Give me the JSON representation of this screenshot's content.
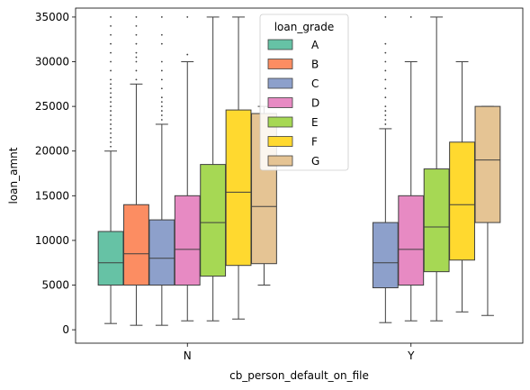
{
  "chart_data": {
    "type": "box",
    "xlabel": "cb_person_default_on_file",
    "ylabel": "loan_amnt",
    "categories": [
      "N",
      "Y"
    ],
    "ylim": [
      -1500,
      36000
    ],
    "yticks": [
      0,
      5000,
      10000,
      15000,
      20000,
      25000,
      30000,
      35000
    ],
    "legend": {
      "title": "loan_grade",
      "placement": "top-center"
    },
    "series": [
      {
        "name": "A",
        "color": "#66c2a5",
        "boxes": [
          {
            "category": "N",
            "whisker_low": 700,
            "q1": 5000,
            "median": 7500,
            "q3": 11000,
            "whisker_high": 20000,
            "outliers": [
              20500,
              21000,
              21500,
              22000,
              22500,
              23000,
              23500,
              24000,
              24500,
              25000,
              25500,
              26000,
              26500,
              27000,
              27500,
              28000,
              29000,
              30000,
              31000,
              32000,
              33000,
              34000,
              35000
            ]
          },
          null
        ]
      },
      {
        "name": "B",
        "color": "#fc8d62",
        "boxes": [
          {
            "category": "N",
            "whisker_low": 500,
            "q1": 5000,
            "median": 8500,
            "q3": 14000,
            "whisker_high": 27500,
            "outliers": [
              28000,
              29000,
              30000,
              30500,
              31000,
              32000,
              33000,
              34000,
              35000
            ]
          },
          null
        ]
      },
      {
        "name": "C",
        "color": "#8da0cb",
        "boxes": [
          {
            "category": "N",
            "whisker_low": 500,
            "q1": 5000,
            "median": 8000,
            "q3": 12300,
            "whisker_high": 23000,
            "outliers": [
              23500,
              24000,
              24500,
              25000,
              25500,
              26000,
              27000,
              28000,
              29000,
              30000,
              32000,
              33000,
              35000
            ]
          },
          {
            "category": "Y",
            "whisker_low": 800,
            "q1": 4700,
            "median": 7500,
            "q3": 12000,
            "whisker_high": 22500,
            "outliers": [
              23000,
              23500,
              24000,
              24500,
              25000,
              26000,
              27000,
              28000,
              29000,
              30000,
              31000,
              32000,
              35000
            ]
          }
        ]
      },
      {
        "name": "D",
        "color": "#e78ac3",
        "boxes": [
          {
            "category": "N",
            "whisker_low": 1000,
            "q1": 5000,
            "median": 9000,
            "q3": 15000,
            "whisker_high": 30000,
            "outliers": [
              30800,
              35000
            ]
          },
          {
            "category": "Y",
            "whisker_low": 1000,
            "q1": 5000,
            "median": 9000,
            "q3": 15000,
            "whisker_high": 30000,
            "outliers": [
              35000
            ]
          }
        ]
      },
      {
        "name": "E",
        "color": "#a6d854",
        "boxes": [
          {
            "category": "N",
            "whisker_low": 1000,
            "q1": 6000,
            "median": 12000,
            "q3": 18500,
            "whisker_high": 35000,
            "outliers": []
          },
          {
            "category": "Y",
            "whisker_low": 1000,
            "q1": 6500,
            "median": 11500,
            "q3": 18000,
            "whisker_high": 35000,
            "outliers": []
          }
        ]
      },
      {
        "name": "F",
        "color": "#ffd92f",
        "boxes": [
          {
            "category": "N",
            "whisker_low": 1200,
            "q1": 7200,
            "median": 15400,
            "q3": 24600,
            "whisker_high": 35000,
            "outliers": []
          },
          {
            "category": "Y",
            "whisker_low": 2000,
            "q1": 7800,
            "median": 14000,
            "q3": 21000,
            "whisker_high": 30000,
            "outliers": []
          }
        ]
      },
      {
        "name": "G",
        "color": "#e5c494",
        "boxes": [
          {
            "category": "N",
            "whisker_low": 5000,
            "q1": 7400,
            "median": 13800,
            "q3": 24200,
            "whisker_high": 25000,
            "outliers": []
          },
          {
            "category": "Y",
            "whisker_low": 1600,
            "q1": 12000,
            "median": 19000,
            "q3": 25000,
            "whisker_high": 25000,
            "outliers": []
          }
        ]
      }
    ]
  }
}
